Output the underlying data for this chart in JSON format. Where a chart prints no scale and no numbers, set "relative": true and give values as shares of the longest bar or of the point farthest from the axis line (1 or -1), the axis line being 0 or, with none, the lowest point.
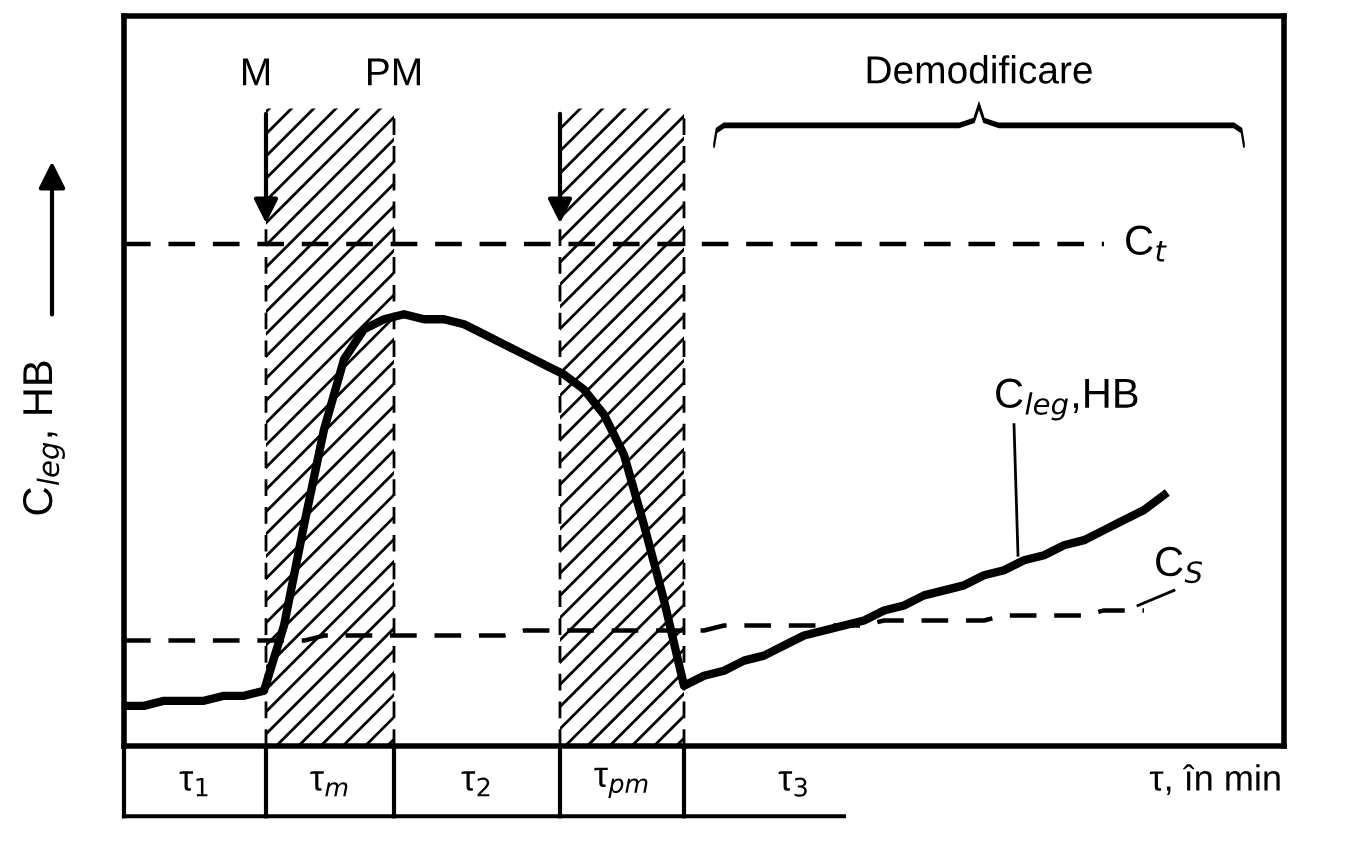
{
  "chart_data": {
    "type": "line",
    "relative": true,
    "xlabel": "τ, în min",
    "ylabel": "C$_{leg}$, HB",
    "categories": [
      null,
      null,
      null,
      null,
      null,
      null,
      null,
      null,
      null,
      null,
      null,
      null,
      null,
      null,
      null,
      null,
      null,
      null,
      null,
      null,
      null,
      null,
      null,
      null,
      null,
      null,
      null,
      null,
      null,
      null,
      null,
      null,
      null,
      null,
      null,
      null,
      null,
      null,
      null,
      null,
      null,
      null,
      null,
      null,
      null,
      null,
      null,
      null,
      null,
      null,
      null,
      null,
      null
    ],
    "series": [
      {
        "name": "C$_{t}$",
        "color": "#000000",
        "line_style": "dashed",
        "values": [
          1,
          1,
          1,
          1,
          1,
          1,
          1,
          1,
          1,
          1,
          1,
          1,
          1,
          1,
          1,
          1,
          1,
          1,
          1,
          1,
          1,
          1,
          1,
          1,
          1,
          1,
          1,
          1,
          1,
          1,
          1,
          1,
          1,
          1,
          1,
          1,
          1,
          1,
          1,
          1,
          1,
          1,
          1,
          1,
          1,
          1,
          1,
          1,
          1,
          1,
          null,
          null,
          null
        ]
      },
      {
        "name": "C$_{S}$",
        "color": "#000000",
        "line_style": "dashed",
        "values": [
          0.21,
          0.21,
          0.21,
          0.21,
          0.21,
          0.21,
          0.21,
          0.21,
          0.21,
          0.21,
          0.22,
          0.22,
          0.22,
          0.22,
          0.22,
          0.22,
          0.22,
          0.22,
          0.22,
          0.22,
          0.23,
          0.23,
          0.23,
          0.23,
          0.23,
          0.23,
          0.23,
          0.23,
          0.23,
          0.23,
          0.24,
          0.24,
          0.24,
          0.24,
          0.24,
          0.24,
          0.24,
          0.24,
          0.25,
          0.25,
          0.25,
          0.25,
          0.25,
          0.25,
          0.26,
          0.26,
          0.26,
          0.26,
          0.26,
          0.27,
          0.27,
          0.27,
          null
        ]
      },
      {
        "name": "C$_{leg}$,HB",
        "color": "#000000",
        "line_style": "solid",
        "values": [
          0.08,
          0.08,
          0.09,
          0.09,
          0.09,
          0.1,
          0.1,
          0.11,
          0.24,
          0.44,
          0.63,
          0.77,
          0.83,
          0.85,
          0.86,
          0.85,
          0.85,
          0.84,
          0.82,
          0.8,
          0.78,
          0.76,
          0.74,
          0.71,
          0.66,
          0.58,
          0.44,
          0.29,
          0.12,
          0.14,
          0.15,
          0.17,
          0.18,
          0.2,
          0.22,
          0.23,
          0.24,
          0.25,
          0.27,
          0.28,
          0.3,
          0.31,
          0.32,
          0.34,
          0.35,
          0.37,
          0.38,
          0.4,
          0.41,
          0.43,
          0.45,
          0.47,
          0.5
        ]
      }
    ],
    "annotations": [
      "M",
      "PM",
      "Demodificare",
      "τ$_{1}$",
      "τ$_{m}$",
      "τ$_{2}$",
      "τ$_{pm}$",
      "τ$_{3}$"
    ],
    "grid": false,
    "legend": false,
    "marker": "none"
  }
}
